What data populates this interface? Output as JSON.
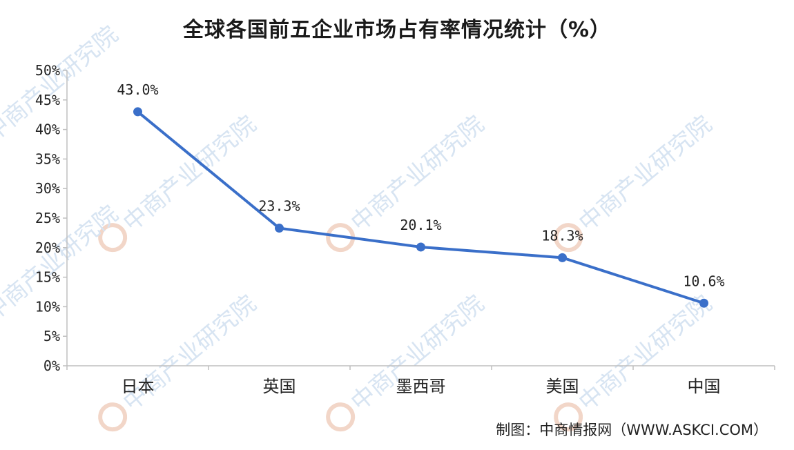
{
  "watermark": "中商产业研究院",
  "source": "制图：中商情报网（WWW.ASKCI.COM）",
  "colors": {
    "line": "#3a6fc9",
    "axis": "#bfbfbf",
    "text": "#222222",
    "watermark": "#d7e4f2"
  },
  "chart_data": {
    "type": "line",
    "title": "全球各国前五企业市场占有率情况统计（%）",
    "categories": [
      "日本",
      "英国",
      "墨西哥",
      "美国",
      "中国"
    ],
    "series": [
      {
        "values": [
          43.0,
          23.3,
          20.1,
          18.3,
          10.6
        ]
      }
    ],
    "data_labels": [
      "43.0%",
      "23.3%",
      "20.1%",
      "18.3%",
      "10.6%"
    ],
    "y_ticks": [
      "0%",
      "5%",
      "10%",
      "15%",
      "20%",
      "25%",
      "30%",
      "35%",
      "40%",
      "45%",
      "50%"
    ],
    "ylim": [
      0,
      50
    ],
    "grid": false,
    "legend": "none"
  }
}
